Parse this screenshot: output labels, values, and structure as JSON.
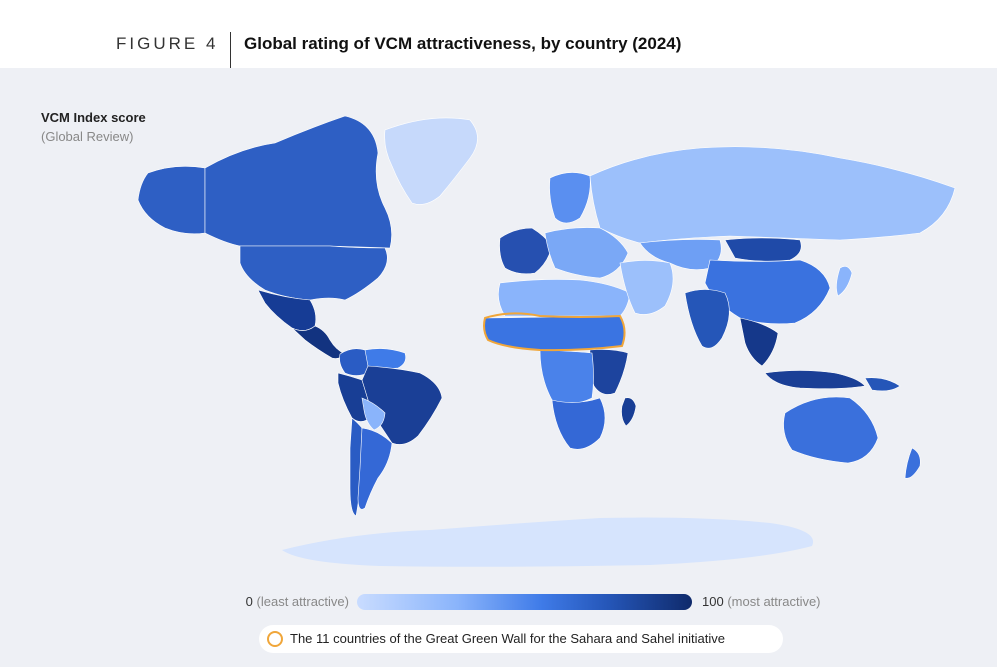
{
  "figure": {
    "label": "FIGURE 4",
    "title": "Global rating of VCM attractiveness, by country (2024)"
  },
  "legend": {
    "title": "VCM Index score",
    "subtitle": "(Global Review)",
    "min_value": "0",
    "min_hint": "(least attractive)",
    "max_value": "100",
    "max_hint": "(most attractive)",
    "colors": [
      "#c9dcff",
      "#8ab4fb",
      "#3f7be8",
      "#2556b8",
      "#0f2a6b"
    ]
  },
  "great_green_wall": {
    "label": "The 11 countries of the Great Green Wall for the Sahara and Sahel initiative",
    "outline_color": "#f0a63a"
  },
  "map": {
    "ocean_color": "#eef0f5",
    "antarctica_color": "#d6e4fd",
    "regions": [
      {
        "name": "canada",
        "color": "#2e5fc4"
      },
      {
        "name": "alaska",
        "color": "#2e5fc4"
      },
      {
        "name": "greenland",
        "color": "#c6d9fb"
      },
      {
        "name": "usa",
        "color": "#2e5fc4"
      },
      {
        "name": "mexico",
        "color": "#163c95"
      },
      {
        "name": "central-america",
        "color": "#123380"
      },
      {
        "name": "colombia",
        "color": "#2a5cc4"
      },
      {
        "name": "venezuela",
        "color": "#3f7be8"
      },
      {
        "name": "brazil",
        "color": "#1a3f96"
      },
      {
        "name": "peru",
        "color": "#183e95"
      },
      {
        "name": "bolivia",
        "color": "#8ab4fb"
      },
      {
        "name": "argentina",
        "color": "#3468d6"
      },
      {
        "name": "chile",
        "color": "#2a5cc4"
      },
      {
        "name": "europe-west",
        "color": "#2650b0"
      },
      {
        "name": "scandinavia",
        "color": "#5a8ff0"
      },
      {
        "name": "europe-east",
        "color": "#7aa8f6"
      },
      {
        "name": "russia",
        "color": "#9cc0fb"
      },
      {
        "name": "north-africa",
        "color": "#8ab4fb"
      },
      {
        "name": "sahel-belt",
        "color": "#3a74e2"
      },
      {
        "name": "east-africa",
        "color": "#1d449e"
      },
      {
        "name": "central-africa",
        "color": "#4a82ea"
      },
      {
        "name": "southern-africa",
        "color": "#3468d6"
      },
      {
        "name": "madagascar",
        "color": "#183e95"
      },
      {
        "name": "middle-east",
        "color": "#9cc0fb"
      },
      {
        "name": "central-asia",
        "color": "#6e9ff4"
      },
      {
        "name": "china",
        "color": "#3a72df"
      },
      {
        "name": "mongolia",
        "color": "#1f4aa8"
      },
      {
        "name": "india",
        "color": "#2556b8"
      },
      {
        "name": "southeast-asia",
        "color": "#15388a"
      },
      {
        "name": "indonesia",
        "color": "#1a3f96"
      },
      {
        "name": "japan",
        "color": "#8ab4fb"
      },
      {
        "name": "australia",
        "color": "#3a70dc"
      },
      {
        "name": "new-zealand",
        "color": "#3a70dc"
      },
      {
        "name": "papua",
        "color": "#2556b8"
      }
    ]
  }
}
